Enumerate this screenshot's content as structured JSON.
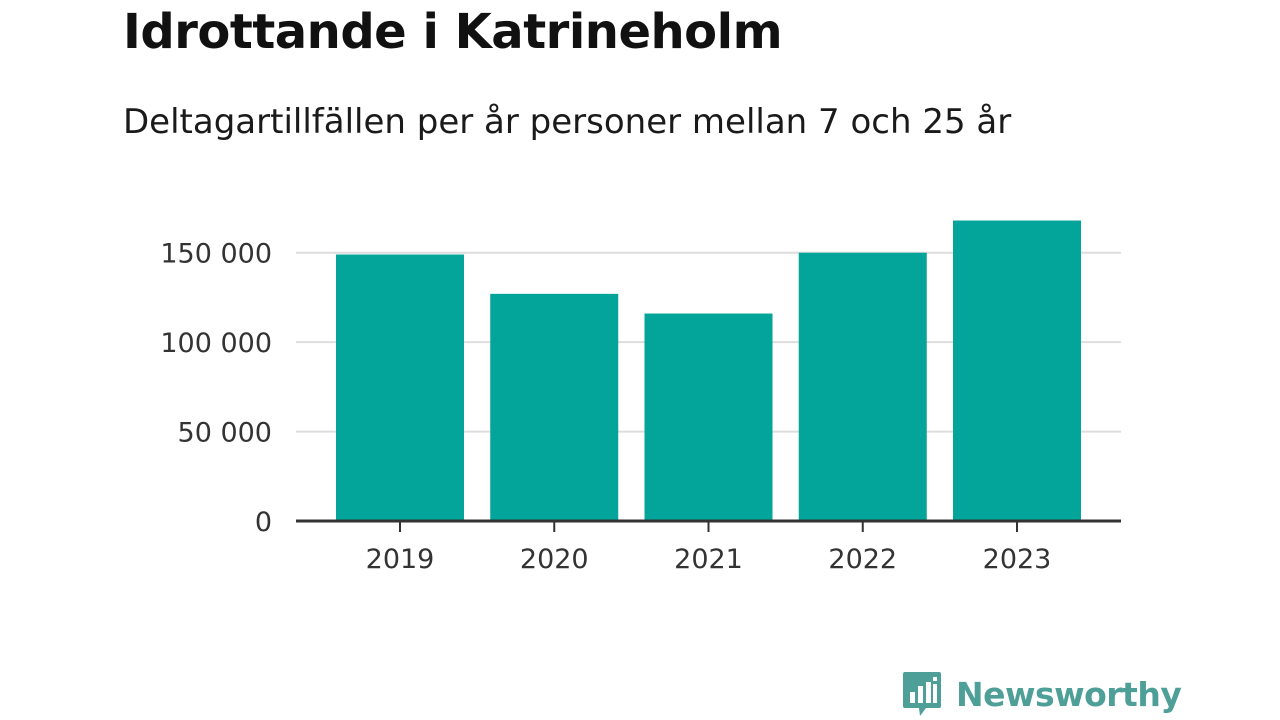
{
  "colors": {
    "bar": "#03a499",
    "grid": "#dddddd",
    "axis": "#333333",
    "logo": "#4d9f98"
  },
  "chart_data": {
    "type": "bar",
    "title": "Idrottande i Katrineholm",
    "subtitle": "Deltagartillfällen per år personer mellan 7 och 25 år",
    "categories": [
      "2019",
      "2020",
      "2021",
      "2022",
      "2023"
    ],
    "values": [
      149000,
      127000,
      116000,
      150000,
      168000
    ],
    "yticks": [
      0,
      50000,
      100000,
      150000
    ],
    "ytick_labels": [
      "0",
      "50 000",
      "100 000",
      "150 000"
    ],
    "ylim": [
      0,
      175000
    ],
    "grid": true,
    "legend": "none"
  },
  "brand": {
    "name": "Newsworthy",
    "icon": "bar-chart-speech-bubble-icon"
  }
}
